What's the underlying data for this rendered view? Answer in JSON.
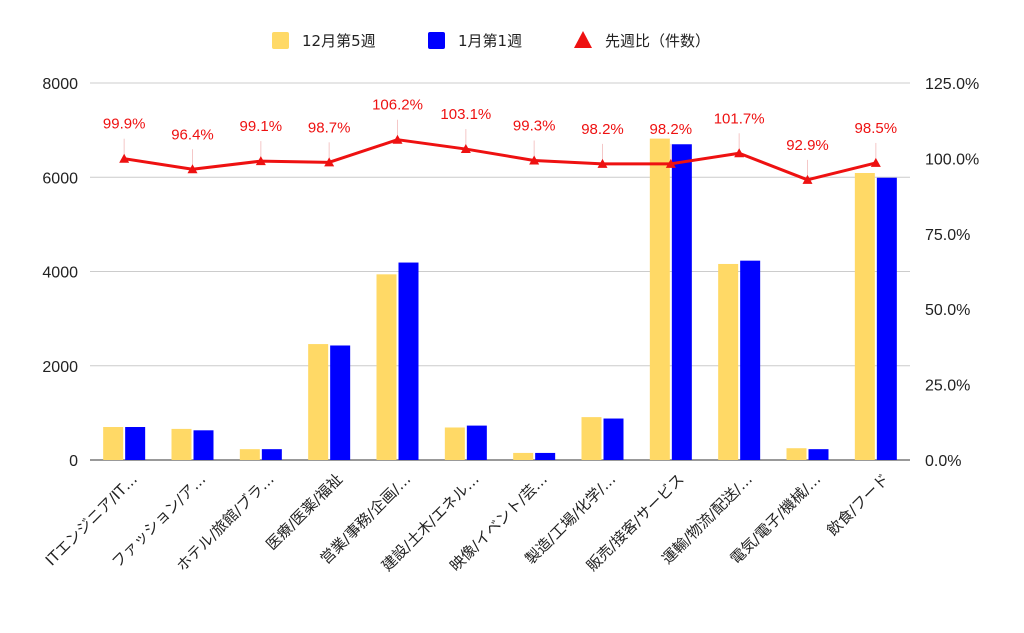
{
  "chart_data": {
    "type": "bar",
    "categories": [
      "ITエンジニア/IT…",
      "ファッション/ア…",
      "ホテル/旅館/ブラ…",
      "医療/医薬/福祉",
      "営業/事務/企画/…",
      "建設/土木/エネル…",
      "映像/イベント/芸…",
      "製造/工場/化学/…",
      "販売/接客/サービス",
      "運輸/物流/配送/…",
      "電気/電子/機械/…",
      "飲食/フード"
    ],
    "series": [
      {
        "name": "12月第5週",
        "type": "bar",
        "axis": "left",
        "color": "#ffd966",
        "values": [
          700,
          660,
          230,
          2460,
          3940,
          690,
          150,
          910,
          6820,
          4160,
          250,
          6090
        ]
      },
      {
        "name": "1月第1週",
        "type": "bar",
        "axis": "left",
        "color": "#0000ff",
        "values": [
          700,
          630,
          230,
          2430,
          4190,
          730,
          150,
          880,
          6700,
          4230,
          230,
          5990
        ]
      },
      {
        "name": "先週比（件数）",
        "type": "line",
        "axis": "right",
        "color": "#ee1111",
        "values": [
          99.9,
          96.4,
          99.1,
          98.7,
          106.2,
          103.1,
          99.3,
          98.2,
          98.2,
          101.7,
          92.9,
          98.5
        ],
        "labels": [
          "99.9%",
          "96.4%",
          "99.1%",
          "98.7%",
          "106.2%",
          "103.1%",
          "99.3%",
          "98.2%",
          "98.2%",
          "101.7%",
          "92.9%",
          "98.5%"
        ]
      }
    ],
    "left_axis": {
      "min": 0,
      "max": 8000,
      "ticks": [
        "0",
        "2000",
        "4000",
        "6000",
        "8000"
      ]
    },
    "right_axis": {
      "min": 0,
      "max": 125,
      "ticks": [
        "0.0%",
        "25.0%",
        "50.0%",
        "75.0%",
        "100.0%",
        "125.0%"
      ]
    },
    "grid": true,
    "legend_position": "top-center"
  }
}
